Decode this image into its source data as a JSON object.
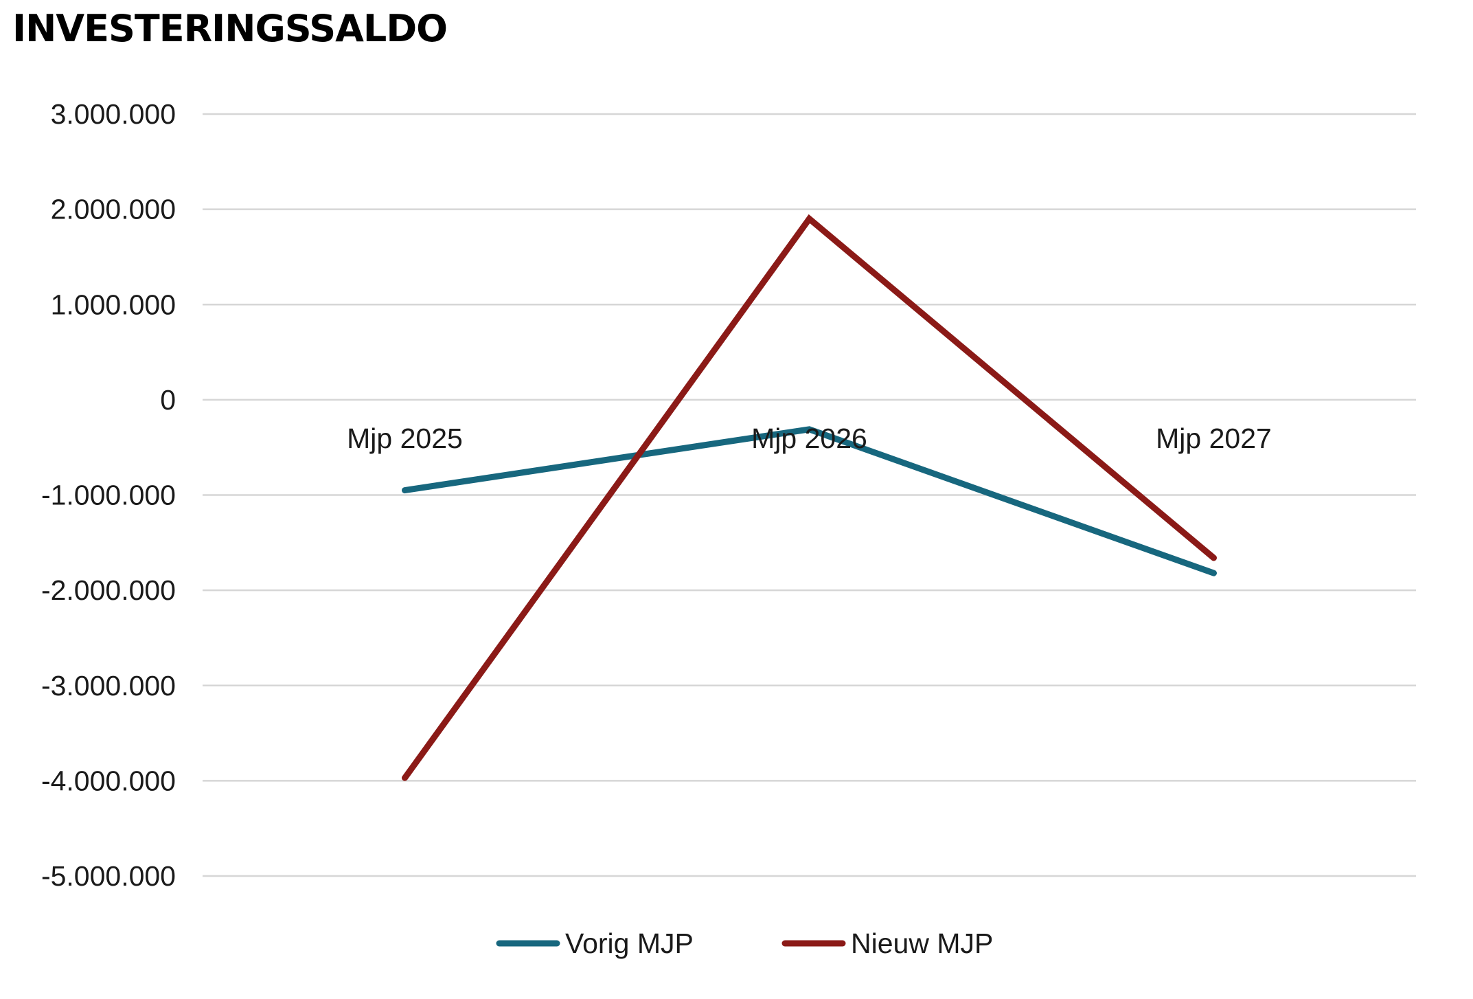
{
  "chart_data": {
    "type": "line",
    "title": "INVESTERINGSSALDO",
    "categories": [
      "Mjp 2025",
      "Mjp 2026",
      "Mjp 2027"
    ],
    "ylim": [
      -5000000,
      3000000
    ],
    "yticks": [
      3000000,
      2000000,
      1000000,
      0,
      -1000000,
      -2000000,
      -3000000,
      -4000000,
      -5000000
    ],
    "ytick_labels": [
      "3.000.000",
      "2.000.000",
      "1.000.000",
      "0",
      "-1.000.000",
      "-2.000.000",
      "-3.000.000",
      "-4.000.000",
      "-5.000.000"
    ],
    "grid": true,
    "legend_position": "bottom",
    "series": [
      {
        "name": "Vorig MJP",
        "color": "#17677e",
        "values": [
          -950000,
          -310000,
          -1820000
        ]
      },
      {
        "name": "Nieuw MJP",
        "color": "#8b1a17",
        "values": [
          -3970000,
          1900000,
          -1660000
        ]
      }
    ]
  }
}
